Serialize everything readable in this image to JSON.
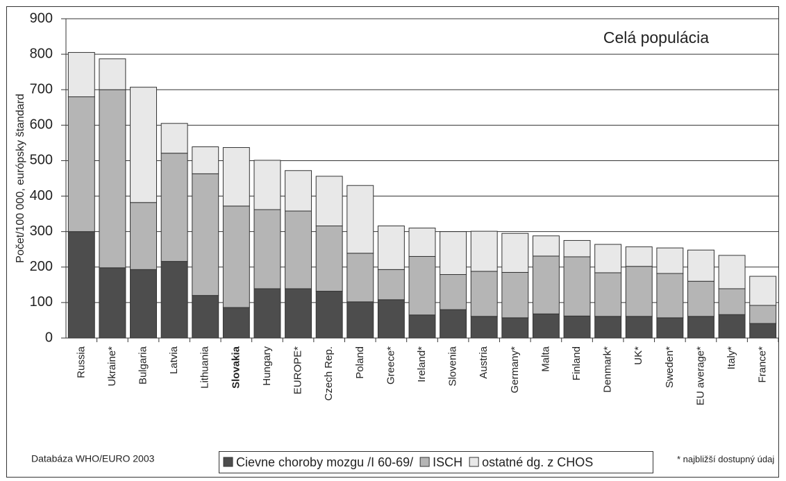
{
  "chart_data": {
    "type": "stacked_bar",
    "annotation": "Celá populácia",
    "y_label": "Počet/100 000, európsky štandard",
    "source": "Databáza WHO/EURO 2003",
    "footnote": "* najbližší dostupný údaj",
    "categories": [
      "Russia",
      "Ukraine*",
      "Bulgaria",
      "Latvia",
      "Lithuania",
      "Slovakia",
      "Hungary",
      "EUROPE*",
      "Czech Rep.",
      "Poland",
      "Greece*",
      "Ireland*",
      "Slovenia",
      "Austria",
      "Germany*",
      "Malta",
      "Finland",
      "Denmark*",
      "UK*",
      "Sweden*",
      "EU average*",
      "Italy*",
      "France*"
    ],
    "bold_category_index": 5,
    "series": [
      {
        "name": "Cievne choroby mozgu /I 60-69/",
        "color": "#4d4d4d",
        "values": [
          300,
          198,
          193,
          216,
          120,
          86,
          139,
          139,
          132,
          102,
          108,
          65,
          80,
          61,
          57,
          68,
          62,
          61,
          61,
          57,
          61,
          66,
          41
        ]
      },
      {
        "name": "ISCH",
        "color": "#b5b5b5",
        "values": [
          380,
          502,
          189,
          305,
          343,
          286,
          223,
          219,
          184,
          137,
          85,
          165,
          99,
          127,
          128,
          163,
          167,
          123,
          141,
          125,
          99,
          73,
          51
        ]
      },
      {
        "name": "ostatné dg. z CHOS",
        "color": "#e8e8e8",
        "values": [
          125,
          87,
          325,
          84,
          76,
          165,
          139,
          114,
          140,
          191,
          123,
          80,
          121,
          113,
          110,
          57,
          46,
          80,
          55,
          72,
          88,
          94,
          82
        ]
      }
    ],
    "ylim": [
      0,
      900
    ],
    "yticks": [
      0,
      100,
      200,
      300,
      400,
      500,
      600,
      700,
      800,
      900
    ],
    "grid": true
  }
}
